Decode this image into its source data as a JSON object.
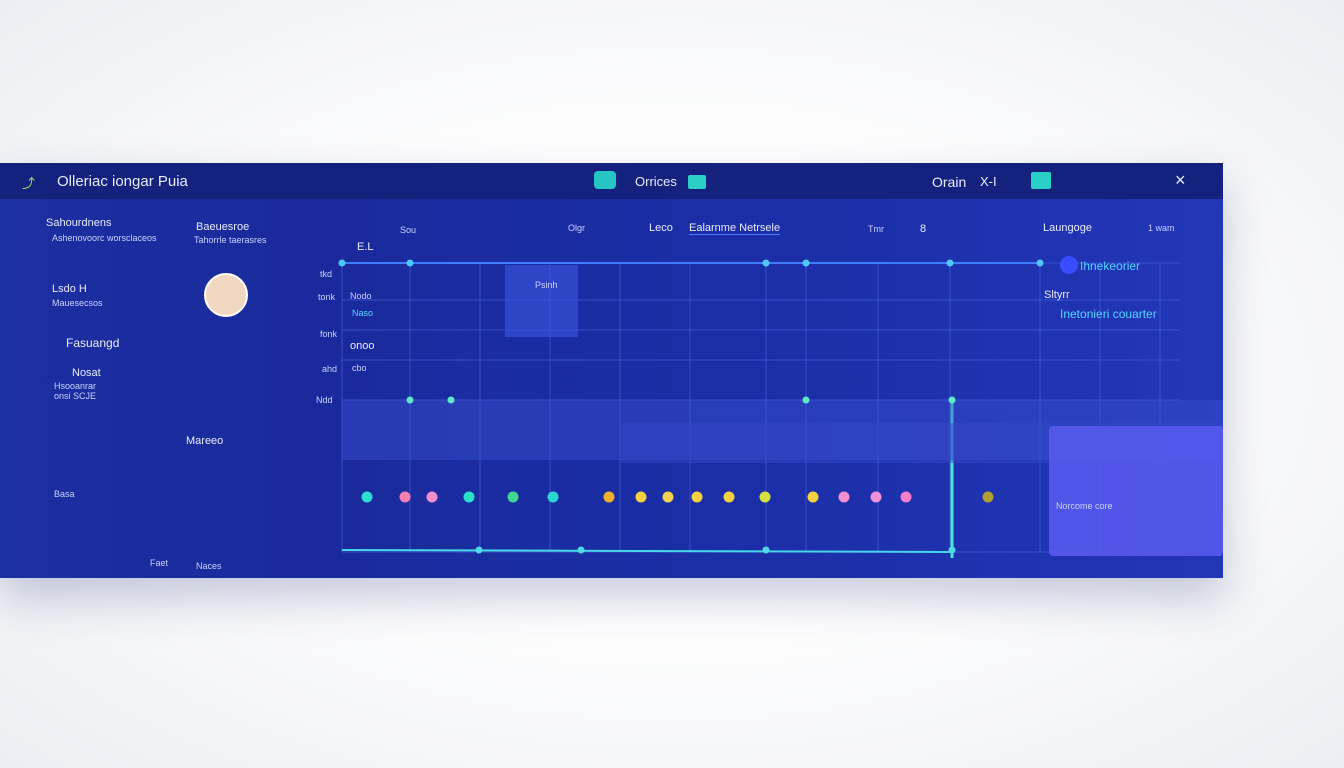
{
  "window": {
    "title": "Olleriac iongar Puia",
    "tab": "Orrices",
    "tab2": "Orain",
    "tab2_badge": "X-I",
    "close": "×"
  },
  "sidebar": {
    "items": [
      {
        "title": "Sahourdnens",
        "subtitle": "Ashenovoorc worsclaceos"
      },
      {
        "title": "Baeuesroe",
        "subtitle": "Tahorrle taerasres"
      },
      {
        "title": "Lsdo H",
        "subtitle": "Mauesecsos"
      },
      {
        "title": "Fasuangd"
      },
      {
        "title": "Nosat",
        "subtitle": "Hsooanrar onsi SCJE"
      },
      {
        "title": "Mareeo"
      },
      {
        "title": "Basa"
      },
      {
        "title": "Faet"
      },
      {
        "title": "Naces"
      }
    ]
  },
  "chart": {
    "header_labels": [
      "Sou",
      "Olgr",
      "Leco",
      "Ealarnme Netrsele",
      "Tmr",
      "8"
    ],
    "corner_label": "E.L",
    "row_labels": [
      "tkd",
      "tonk",
      "fonk",
      "ahd",
      "Ndd"
    ],
    "inner_labels": [
      "Nodo",
      "Naso",
      "onoo",
      "cbo"
    ],
    "tooltip": "Psinh"
  },
  "right": {
    "title": "Laungoge",
    "subtitle": "1 wam",
    "item1": "Ihnekeorier",
    "item2": "Sltyrr",
    "item3": "Inetonieri couarter",
    "card": "Norcome core"
  }
}
